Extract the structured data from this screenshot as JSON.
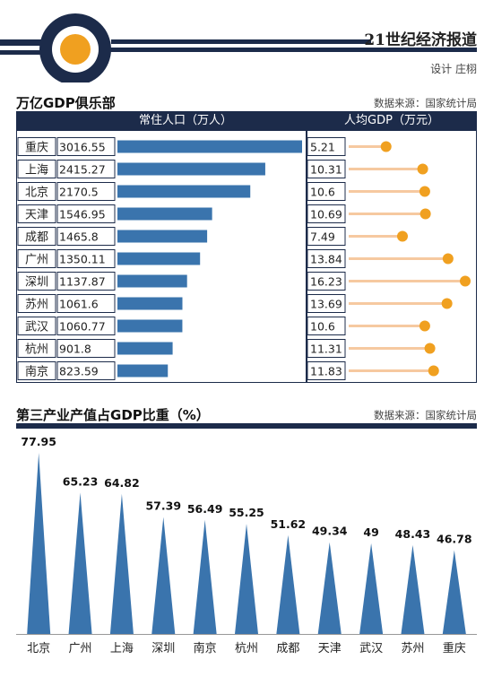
{
  "header": {
    "paper_name": "21世纪经济报道",
    "designer": "设计 庄栩"
  },
  "colors": {
    "navy": "#1c2b4a",
    "bar_blue": "#3a74ad",
    "dot_orange": "#f0a020",
    "stem_peach": "#f6c9a0"
  },
  "chart_data": [
    {
      "type": "table",
      "title": "万亿GDP俱乐部",
      "source": "数据来源：国家统计局",
      "columns": [
        "常住人口（万人）",
        "人均GDP（万元）"
      ],
      "categories": [
        "重庆",
        "上海",
        "北京",
        "天津",
        "成都",
        "广州",
        "深圳",
        "苏州",
        "武汉",
        "杭州",
        "南京"
      ],
      "series": [
        {
          "name": "常住人口（万人）",
          "type": "bar",
          "values": [
            3016.55,
            2415.27,
            2170.5,
            1546.95,
            1465.8,
            1350.11,
            1137.87,
            1061.6,
            1060.77,
            901.8,
            823.59
          ]
        },
        {
          "name": "人均GDP（万元）",
          "type": "lollipop",
          "values": [
            5.21,
            10.31,
            10.6,
            10.69,
            7.49,
            13.84,
            16.23,
            13.69,
            10.6,
            11.31,
            11.83
          ]
        }
      ],
      "value_labels": {
        "population": [
          "3016.55",
          "2415.27",
          "2170.5",
          "1546.95",
          "1465.8",
          "1350.11",
          "1137.87",
          "1061.6",
          "1060.77",
          "901.8",
          "823.59"
        ],
        "gdp_per_capita": [
          "5.21",
          "10.31",
          "10.6",
          "10.69",
          "7.49",
          "13.84",
          "16.23",
          "13.69",
          "10.6",
          "11.31",
          "11.83"
        ]
      }
    },
    {
      "type": "bar",
      "title": "第三产业产值占GDP比重（%）",
      "source": "数据来源：国家统计局",
      "categories": [
        "北京",
        "广州",
        "上海",
        "深圳",
        "南京",
        "杭州",
        "成都",
        "天津",
        "武汉",
        "苏州",
        "重庆"
      ],
      "values": [
        77.95,
        65.23,
        64.82,
        57.39,
        56.49,
        55.25,
        51.62,
        49.34,
        49,
        48.43,
        46.78
      ],
      "value_labels": [
        "77.95",
        "65.23",
        "64.82",
        "57.39",
        "56.49",
        "55.25",
        "51.62",
        "49.34",
        "49",
        "48.43",
        "46.78"
      ],
      "ylim": [
        0,
        80
      ],
      "bar_shape": "triangle"
    }
  ]
}
